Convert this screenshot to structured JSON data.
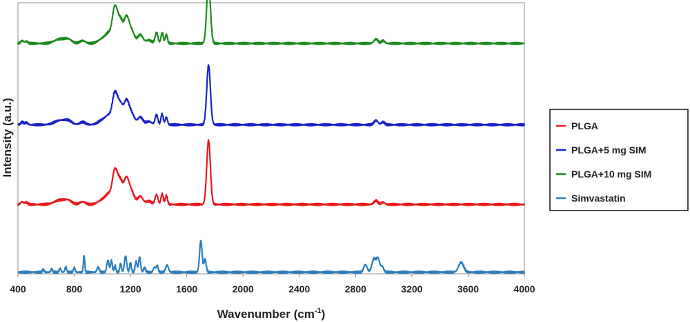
{
  "chart_data": {
    "type": "line",
    "title": "",
    "xlabel": "Wavenumber (cm",
    "xlabel_sup": "-1",
    "xlabel_end": ")",
    "ylabel": "Intensity (a.u.)",
    "xlim": [
      400,
      4000
    ],
    "ylim": [
      0,
      5
    ],
    "x_ticks": [
      400,
      800,
      1200,
      1600,
      2000,
      2400,
      2800,
      3200,
      3600,
      4000
    ],
    "x_tick_labels": [
      "400",
      "800",
      "1200",
      "1600",
      "2000",
      "2400",
      "2800",
      "3200",
      "3600",
      "4000"
    ],
    "y_tick_labels_visible": false,
    "grid": false,
    "legend_position": "right",
    "legend": [
      "PLGA",
      "PLGA+5 mg SIM",
      "PLGA+10 mg SIM",
      "Simvastatin"
    ],
    "series": [
      {
        "name": "PLGA",
        "color": "#e8191c",
        "baseline": 1.28,
        "peaks": [
          [
            430,
            0.05,
            10
          ],
          [
            460,
            0.04,
            10
          ],
          [
            700,
            0.08,
            40
          ],
          [
            760,
            0.06,
            25
          ],
          [
            860,
            0.05,
            20
          ],
          [
            1000,
            0.08,
            30
          ],
          [
            1050,
            0.18,
            25
          ],
          [
            1088,
            0.56,
            16
          ],
          [
            1110,
            0.22,
            12
          ],
          [
            1130,
            0.34,
            14
          ],
          [
            1170,
            0.48,
            20
          ],
          [
            1210,
            0.2,
            20
          ],
          [
            1270,
            0.15,
            18
          ],
          [
            1330,
            0.06,
            20
          ],
          [
            1385,
            0.18,
            10
          ],
          [
            1425,
            0.2,
            8
          ],
          [
            1455,
            0.16,
            8
          ],
          [
            1755,
            1.18,
            13
          ],
          [
            2945,
            0.07,
            14
          ],
          [
            2995,
            0.04,
            12
          ]
        ]
      },
      {
        "name": "PLGA+5 mg SIM",
        "color": "#1c22c8",
        "baseline": 2.75,
        "peaks": [
          [
            430,
            0.05,
            10
          ],
          [
            460,
            0.04,
            10
          ],
          [
            700,
            0.08,
            40
          ],
          [
            760,
            0.06,
            25
          ],
          [
            860,
            0.05,
            20
          ],
          [
            1000,
            0.08,
            30
          ],
          [
            1050,
            0.16,
            25
          ],
          [
            1088,
            0.52,
            16
          ],
          [
            1110,
            0.2,
            12
          ],
          [
            1130,
            0.3,
            14
          ],
          [
            1170,
            0.44,
            20
          ],
          [
            1210,
            0.18,
            20
          ],
          [
            1270,
            0.14,
            18
          ],
          [
            1330,
            0.06,
            20
          ],
          [
            1385,
            0.18,
            10
          ],
          [
            1425,
            0.2,
            8
          ],
          [
            1455,
            0.14,
            8
          ],
          [
            1755,
            1.1,
            13
          ],
          [
            2945,
            0.08,
            14
          ],
          [
            2995,
            0.05,
            12
          ]
        ]
      },
      {
        "name": "PLGA+10 mg SIM",
        "color": "#1f8a1f",
        "baseline": 4.25,
        "peaks": [
          [
            430,
            0.05,
            10
          ],
          [
            460,
            0.04,
            10
          ],
          [
            700,
            0.08,
            40
          ],
          [
            760,
            0.06,
            25
          ],
          [
            860,
            0.05,
            20
          ],
          [
            1000,
            0.08,
            30
          ],
          [
            1050,
            0.18,
            25
          ],
          [
            1088,
            0.6,
            16
          ],
          [
            1110,
            0.22,
            12
          ],
          [
            1130,
            0.34,
            14
          ],
          [
            1170,
            0.48,
            20
          ],
          [
            1210,
            0.2,
            20
          ],
          [
            1270,
            0.16,
            18
          ],
          [
            1330,
            0.06,
            20
          ],
          [
            1385,
            0.2,
            10
          ],
          [
            1425,
            0.2,
            8
          ],
          [
            1455,
            0.16,
            8
          ],
          [
            1755,
            1.16,
            13
          ],
          [
            2945,
            0.08,
            14
          ],
          [
            2995,
            0.05,
            12
          ]
        ]
      },
      {
        "name": "Simvastatin",
        "color": "#2c7fbf",
        "baseline": 0.03,
        "peaks": [
          [
            580,
            0.05,
            6
          ],
          [
            640,
            0.06,
            6
          ],
          [
            700,
            0.07,
            6
          ],
          [
            740,
            0.1,
            6
          ],
          [
            800,
            0.08,
            6
          ],
          [
            870,
            0.3,
            5
          ],
          [
            970,
            0.09,
            8
          ],
          [
            1040,
            0.22,
            8
          ],
          [
            1065,
            0.22,
            6
          ],
          [
            1090,
            0.12,
            6
          ],
          [
            1130,
            0.16,
            6
          ],
          [
            1165,
            0.3,
            8
          ],
          [
            1200,
            0.18,
            6
          ],
          [
            1240,
            0.2,
            7
          ],
          [
            1265,
            0.28,
            7
          ],
          [
            1300,
            0.08,
            8
          ],
          [
            1370,
            0.09,
            8
          ],
          [
            1390,
            0.12,
            7
          ],
          [
            1460,
            0.13,
            10
          ],
          [
            1700,
            0.58,
            9
          ],
          [
            1730,
            0.24,
            8
          ],
          [
            2870,
            0.14,
            12
          ],
          [
            2930,
            0.24,
            14
          ],
          [
            2960,
            0.24,
            12
          ],
          [
            2990,
            0.1,
            10
          ],
          [
            3550,
            0.18,
            18
          ]
        ]
      }
    ]
  }
}
